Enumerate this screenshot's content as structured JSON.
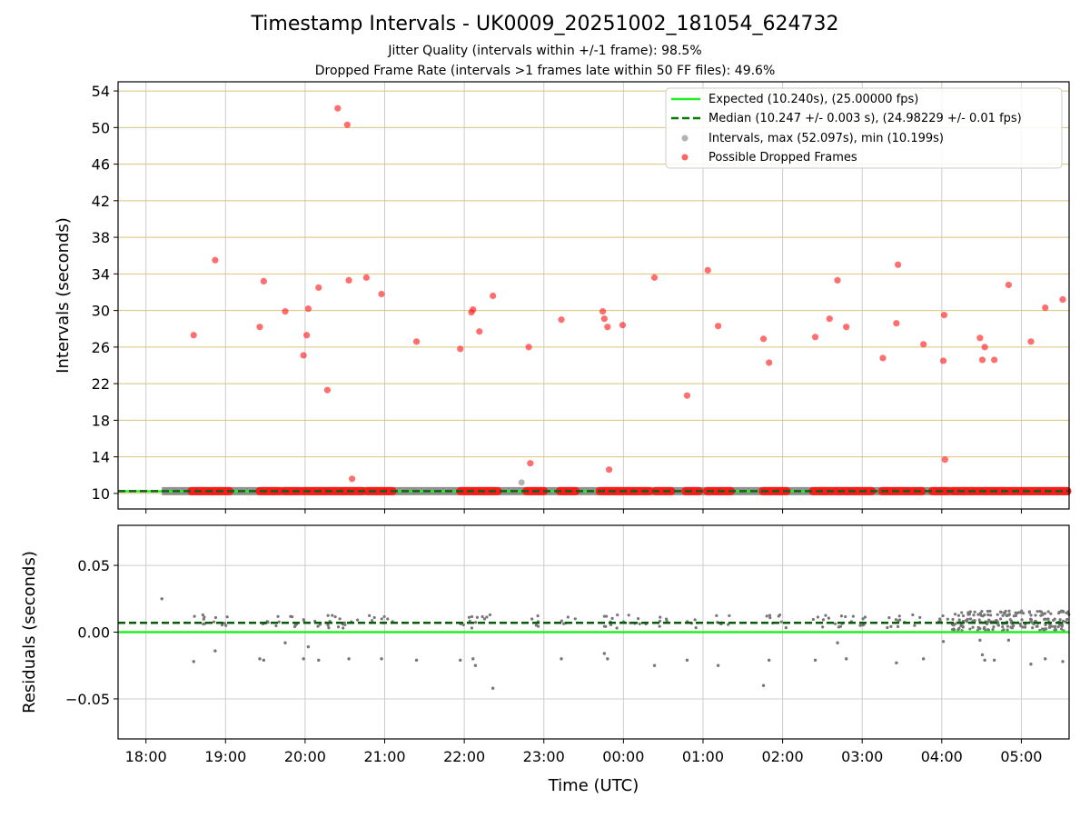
{
  "chart_data": {
    "title": "Timestamp Intervals - UK0009_20251002_181054_624732",
    "subtitle_1": "Jitter Quality (intervals within +/-1 frame): 98.5%",
    "subtitle_2": "Dropped Frame Rate (intervals >1 frames late within 50 FF files): 49.6%",
    "xlabel": "Time (UTC)",
    "x_range_hours": [
      17.65,
      29.6
    ],
    "x_ticks": [
      {
        "hour": 18,
        "label": "18:00"
      },
      {
        "hour": 19,
        "label": "19:00"
      },
      {
        "hour": 20,
        "label": "20:00"
      },
      {
        "hour": 21,
        "label": "21:00"
      },
      {
        "hour": 22,
        "label": "22:00"
      },
      {
        "hour": 23,
        "label": "23:00"
      },
      {
        "hour": 24,
        "label": "00:00"
      },
      {
        "hour": 25,
        "label": "01:00"
      },
      {
        "hour": 26,
        "label": "02:00"
      },
      {
        "hour": 27,
        "label": "03:00"
      },
      {
        "hour": 28,
        "label": "04:00"
      },
      {
        "hour": 29,
        "label": "05:00"
      }
    ],
    "top": {
      "type": "scatter",
      "ylabel": "Intervals (seconds)",
      "ylim": [
        8.3,
        55.0
      ],
      "y_ticks": [
        10,
        14,
        18,
        22,
        26,
        30,
        34,
        38,
        42,
        46,
        50,
        54
      ],
      "legend": {
        "position": "top-right",
        "expected": "Expected (10.240s), (25.00000 fps)",
        "median": "Median (10.247 +/- 0.003 s), (24.98229 +/- 0.01 fps)",
        "intervals": "Intervals, max (52.097s), min (10.199s)",
        "dropped": "Possible Dropped Frames"
      },
      "expected_value": 10.24,
      "median_value": 10.247,
      "intervals_x_range": [
        18.2,
        29.6
      ],
      "interval_points": [
        [
          22.72,
          11.2
        ]
      ],
      "dropped_segments": [
        [
          18.57,
          18.8
        ],
        [
          18.83,
          19.05
        ],
        [
          19.43,
          19.68
        ],
        [
          19.73,
          19.93
        ],
        [
          19.97,
          20.73
        ],
        [
          20.78,
          21.1
        ],
        [
          21.95,
          22.42
        ],
        [
          22.78,
          23.0
        ],
        [
          23.2,
          23.4
        ],
        [
          23.7,
          24.33
        ],
        [
          24.4,
          24.6
        ],
        [
          24.78,
          24.95
        ],
        [
          25.05,
          25.35
        ],
        [
          25.75,
          26.05
        ],
        [
          26.38,
          26.6
        ],
        [
          26.63,
          27.12
        ],
        [
          27.25,
          27.6
        ],
        [
          27.63,
          27.75
        ],
        [
          27.88,
          28.08
        ],
        [
          28.13,
          28.42
        ],
        [
          28.45,
          29.6
        ]
      ],
      "dropped_points": [
        [
          18.6,
          27.3
        ],
        [
          18.87,
          35.5
        ],
        [
          19.43,
          28.2
        ],
        [
          19.48,
          33.2
        ],
        [
          19.75,
          29.9
        ],
        [
          19.98,
          25.1
        ],
        [
          20.02,
          27.3
        ],
        [
          20.04,
          30.2
        ],
        [
          20.17,
          32.5
        ],
        [
          20.28,
          21.3
        ],
        [
          20.41,
          52.1
        ],
        [
          20.53,
          50.3
        ],
        [
          20.55,
          33.3
        ],
        [
          20.59,
          11.6
        ],
        [
          20.77,
          33.6
        ],
        [
          20.96,
          31.8
        ],
        [
          21.4,
          26.6
        ],
        [
          21.95,
          25.8
        ],
        [
          22.09,
          29.8
        ],
        [
          22.11,
          30.1
        ],
        [
          22.19,
          27.7
        ],
        [
          22.36,
          31.6
        ],
        [
          22.81,
          26.0
        ],
        [
          22.83,
          13.3
        ],
        [
          23.22,
          29.0
        ],
        [
          23.74,
          29.9
        ],
        [
          23.76,
          29.1
        ],
        [
          23.8,
          28.2
        ],
        [
          23.82,
          12.6
        ],
        [
          23.99,
          28.4
        ],
        [
          24.39,
          33.6
        ],
        [
          24.8,
          20.7
        ],
        [
          25.06,
          34.4
        ],
        [
          25.19,
          28.3
        ],
        [
          25.76,
          26.9
        ],
        [
          25.83,
          24.3
        ],
        [
          26.41,
          27.1
        ],
        [
          26.59,
          29.1
        ],
        [
          26.69,
          33.3
        ],
        [
          26.8,
          28.2
        ],
        [
          27.26,
          24.8
        ],
        [
          27.43,
          28.6
        ],
        [
          27.45,
          35.0
        ],
        [
          27.77,
          26.3
        ],
        [
          28.02,
          24.5
        ],
        [
          28.03,
          29.5
        ],
        [
          28.04,
          13.7
        ],
        [
          28.48,
          27.0
        ],
        [
          28.51,
          24.6
        ],
        [
          28.54,
          26.0
        ],
        [
          28.66,
          24.6
        ],
        [
          28.84,
          32.8
        ],
        [
          29.12,
          26.6
        ],
        [
          29.3,
          30.3
        ],
        [
          29.52,
          31.2
        ]
      ]
    },
    "bottom": {
      "type": "scatter",
      "ylabel": "Residuals (seconds)",
      "ylim": [
        -0.08,
        0.08
      ],
      "y_ticks": [
        {
          "value": 0.05,
          "label": "0.05"
        },
        {
          "value": 0.0,
          "label": "0.00"
        },
        {
          "value": -0.05,
          "label": "−0.05"
        }
      ],
      "expected_residual": 0.0,
      "median_residual": 0.007,
      "residual_outliers": [
        [
          18.2,
          0.025
        ],
        [
          18.6,
          -0.022
        ],
        [
          18.87,
          -0.014
        ],
        [
          19.43,
          -0.02
        ],
        [
          19.48,
          -0.021
        ],
        [
          19.75,
          -0.008
        ],
        [
          19.98,
          -0.02
        ],
        [
          20.04,
          -0.011
        ],
        [
          20.17,
          -0.021
        ],
        [
          20.55,
          -0.02
        ],
        [
          20.96,
          -0.02
        ],
        [
          21.4,
          -0.021
        ],
        [
          21.95,
          -0.021
        ],
        [
          22.11,
          -0.02
        ],
        [
          22.14,
          -0.025
        ],
        [
          22.36,
          -0.042
        ],
        [
          23.22,
          -0.02
        ],
        [
          23.76,
          -0.016
        ],
        [
          23.8,
          -0.02
        ],
        [
          24.39,
          -0.025
        ],
        [
          24.8,
          -0.021
        ],
        [
          25.19,
          -0.025
        ],
        [
          25.76,
          -0.04
        ],
        [
          25.83,
          -0.021
        ],
        [
          26.41,
          -0.021
        ],
        [
          26.69,
          -0.008
        ],
        [
          26.8,
          -0.02
        ],
        [
          27.43,
          -0.023
        ],
        [
          27.77,
          -0.02
        ],
        [
          28.02,
          -0.007
        ],
        [
          28.48,
          -0.006
        ],
        [
          28.51,
          -0.017
        ],
        [
          28.54,
          -0.021
        ],
        [
          28.66,
          -0.021
        ],
        [
          28.84,
          -0.006
        ],
        [
          29.12,
          -0.024
        ],
        [
          29.3,
          -0.02
        ],
        [
          29.52,
          -0.022
        ]
      ]
    }
  }
}
